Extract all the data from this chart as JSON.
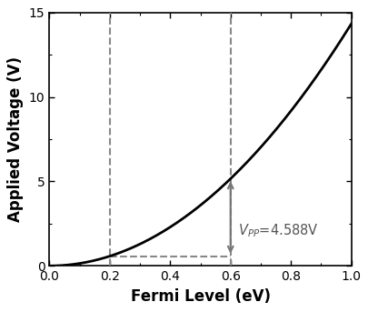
{
  "xlabel": "Fermi Level (eV)",
  "ylabel": "Applied Voltage (V)",
  "xlim": [
    0.0,
    1.0
  ],
  "ylim": [
    0.0,
    15.0
  ],
  "xticks": [
    0.0,
    0.2,
    0.4,
    0.6,
    0.8,
    1.0
  ],
  "yticks": [
    0,
    5,
    10,
    15
  ],
  "ef_min": 0.2,
  "ef_max": 0.6,
  "vpp_annotation": "$V_{PP}$=4.588V",
  "curve_color": "#000000",
  "dashed_color": "#888888",
  "arrow_color": "#777777",
  "background_color": "#ffffff",
  "xlabel_fontsize": 12,
  "ylabel_fontsize": 12,
  "tick_fontsize": 10,
  "annotation_fontsize": 10.5
}
